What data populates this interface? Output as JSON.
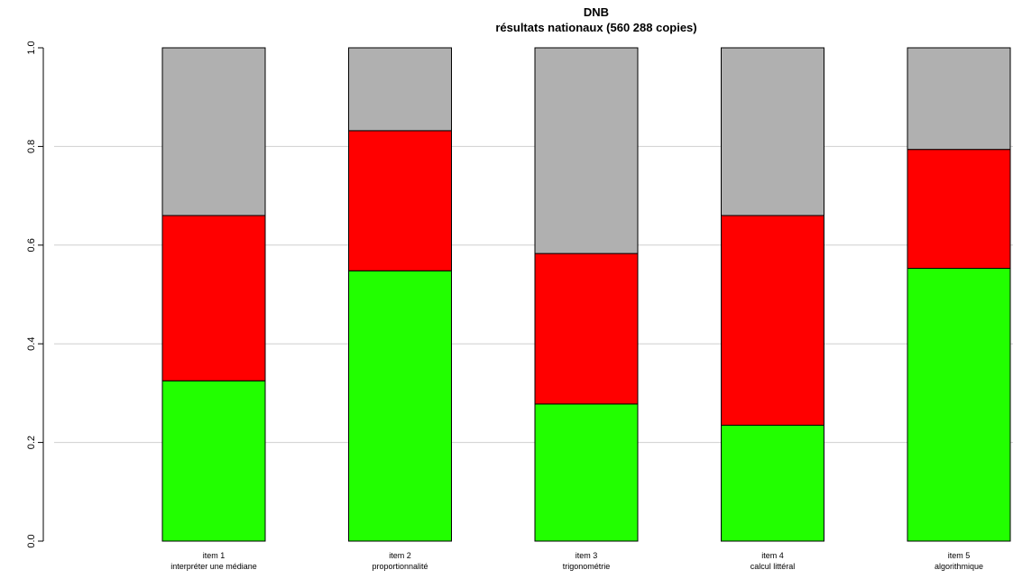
{
  "chart_data": {
    "type": "bar",
    "stacked": true,
    "title": "DNB",
    "subtitle": "résultats nationaux (560 288 copies)",
    "xlabel": "",
    "ylabel": "",
    "ylim": [
      0,
      1
    ],
    "yticks": [
      "0.0",
      "0.2",
      "0.4",
      "0.6",
      "0.8",
      "1.0"
    ],
    "grid": "horizontal",
    "categories": [
      {
        "line1": "item 1",
        "line2": "interpréter une médiane"
      },
      {
        "line1": "item 2",
        "line2": "proportionnalité"
      },
      {
        "line1": "item 3",
        "line2": "trigonométrie"
      },
      {
        "line1": "item 4",
        "line2": "calcul littéral"
      },
      {
        "line1": "item 5",
        "line2": "algorithmique"
      }
    ],
    "series": [
      {
        "color": "#22ff00",
        "values": [
          0.325,
          0.548,
          0.278,
          0.235,
          0.553
        ]
      },
      {
        "color": "#ff0000",
        "values": [
          0.335,
          0.284,
          0.305,
          0.425,
          0.241
        ]
      },
      {
        "color": "#b0b0b0",
        "values": [
          0.34,
          0.168,
          0.417,
          0.34,
          0.206
        ]
      }
    ]
  }
}
